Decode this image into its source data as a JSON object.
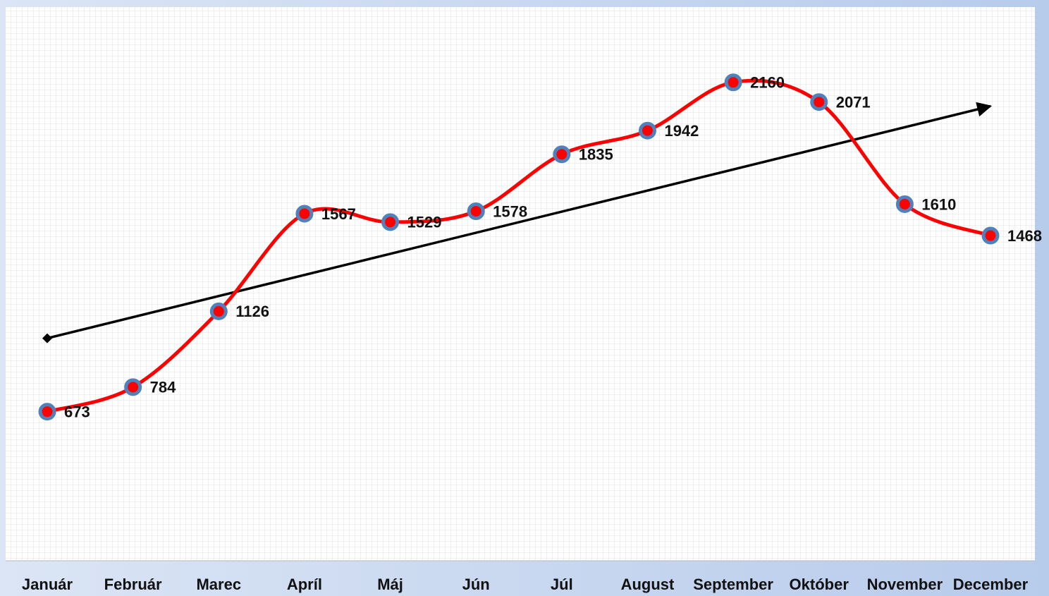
{
  "chart_data": {
    "type": "line",
    "categories": [
      "Január",
      "Február",
      "Marec",
      "Apríl",
      "Máj",
      "Jún",
      "Júl",
      "August",
      "September",
      "Október",
      "November",
      "December"
    ],
    "series": [
      {
        "color": "#ff0000",
        "marker_color": "#4f81bd",
        "values": [
          673,
          784,
          1126,
          1567,
          1529,
          1578,
          1835,
          1942,
          2160,
          2071,
          1610,
          1468
        ]
      }
    ],
    "ylim": [
      0,
      2500
    ],
    "grid": true,
    "trendline": true,
    "smooth": true
  }
}
